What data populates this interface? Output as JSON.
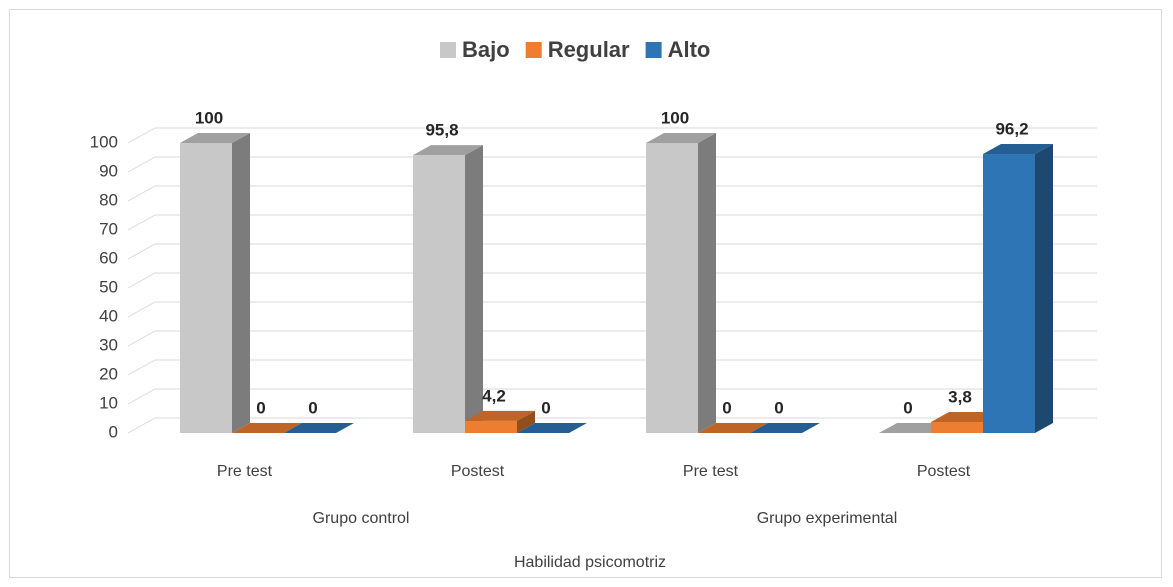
{
  "chart_data": {
    "type": "bar3d",
    "x_label": "Habilidad psicomotriz",
    "categories": [
      "Pre test",
      "Postest",
      "Pre test",
      "Postest"
    ],
    "groups": [
      {
        "label": "Grupo control",
        "span": [
          0,
          1
        ]
      },
      {
        "label": "Grupo experimental",
        "span": [
          2,
          3
        ]
      }
    ],
    "series": [
      {
        "name": "Bajo",
        "color": "#c8c8c8",
        "values": [
          100,
          95.8,
          100,
          0
        ],
        "value_labels": [
          "100",
          "95,8",
          "100",
          "0"
        ]
      },
      {
        "name": "Regular",
        "color": "#ed7d31",
        "values": [
          0,
          4.2,
          0,
          3.8
        ],
        "value_labels": [
          "0",
          "4,2",
          "0",
          "3,8"
        ]
      },
      {
        "name": "Alto",
        "color": "#2e75b6",
        "values": [
          0,
          0,
          0,
          96.2
        ],
        "value_labels": [
          "0",
          "0",
          "0",
          "96,2"
        ]
      }
    ],
    "ylim": [
      0,
      100
    ],
    "yticks": [
      0,
      10,
      20,
      30,
      40,
      50,
      60,
      70,
      80,
      90,
      100
    ],
    "grid": true,
    "legend": "top"
  }
}
